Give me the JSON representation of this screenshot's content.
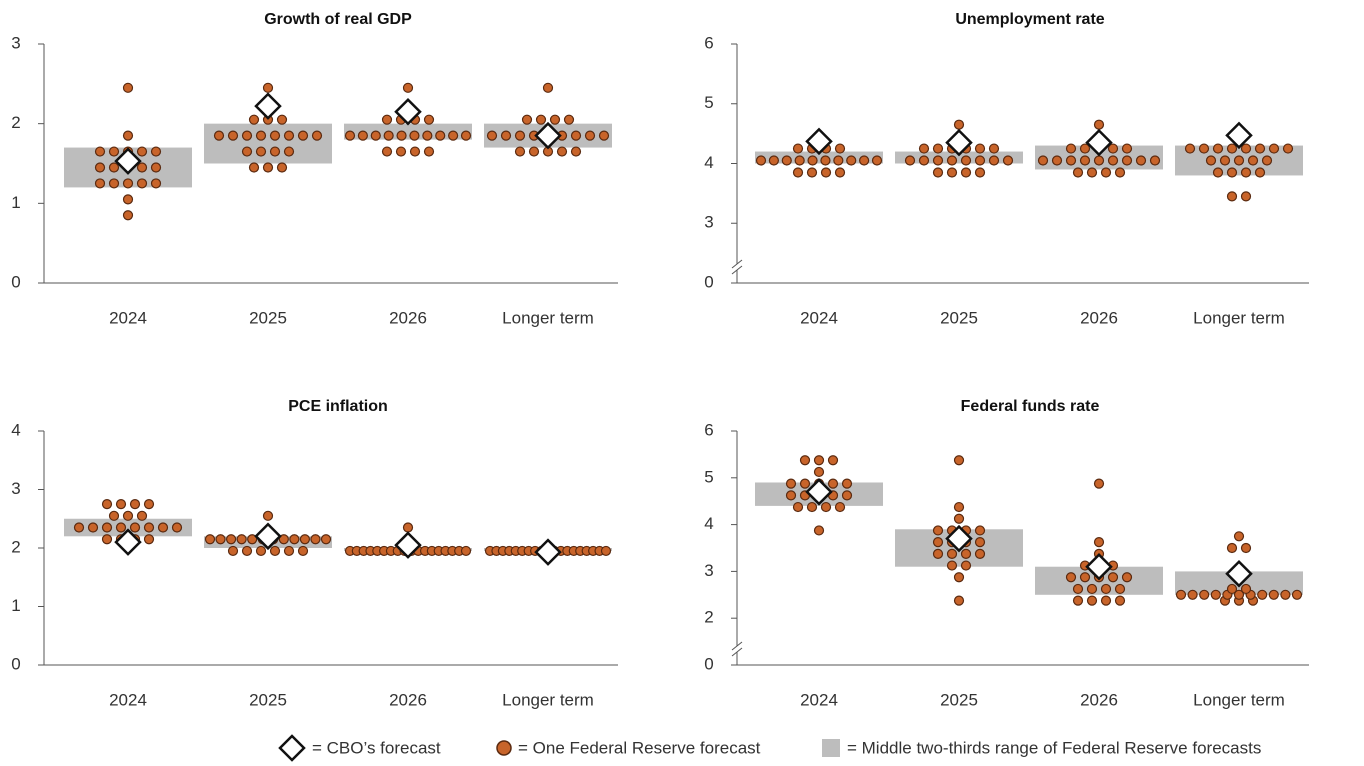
{
  "chart_data": [
    {
      "type": "dot",
      "title": "Growth of real GDP",
      "categories": [
        "2024",
        "2025",
        "2026",
        "Longer term"
      ],
      "ylim": [
        0,
        3
      ],
      "yticks": [
        0,
        1,
        2,
        3
      ],
      "fed_forecasts": [
        [
          0.85,
          1.05,
          1.25,
          1.25,
          1.25,
          1.25,
          1.25,
          1.45,
          1.45,
          1.45,
          1.45,
          1.45,
          1.65,
          1.65,
          1.65,
          1.65,
          1.65,
          1.85,
          2.45
        ],
        [
          1.45,
          1.45,
          1.45,
          1.65,
          1.65,
          1.65,
          1.65,
          1.85,
          1.85,
          1.85,
          1.85,
          1.85,
          1.85,
          1.85,
          1.85,
          2.05,
          2.05,
          2.05,
          2.45
        ],
        [
          1.65,
          1.65,
          1.65,
          1.65,
          1.85,
          1.85,
          1.85,
          1.85,
          1.85,
          1.85,
          1.85,
          1.85,
          1.85,
          1.85,
          2.05,
          2.05,
          2.05,
          2.05,
          2.45
        ],
        [
          1.65,
          1.65,
          1.65,
          1.65,
          1.65,
          1.85,
          1.85,
          1.85,
          1.85,
          1.85,
          1.85,
          1.85,
          1.85,
          1.85,
          2.05,
          2.05,
          2.05,
          2.05,
          2.45
        ]
      ],
      "range": [
        [
          1.2,
          1.7
        ],
        [
          1.5,
          2.0
        ],
        [
          1.8,
          2.0
        ],
        [
          1.7,
          2.0
        ]
      ],
      "cbo": [
        1.53,
        2.22,
        2.15,
        1.85
      ]
    },
    {
      "type": "dot",
      "title": "Unemployment rate",
      "categories": [
        "2024",
        "2025",
        "2026",
        "Longer term"
      ],
      "ylim": [
        2,
        6
      ],
      "yticks": [
        0,
        3,
        4,
        5,
        6
      ],
      "axis_break": true,
      "fed_forecasts": [
        [
          3.85,
          3.85,
          3.85,
          3.85,
          4.05,
          4.05,
          4.05,
          4.05,
          4.05,
          4.05,
          4.05,
          4.05,
          4.05,
          4.05,
          4.25,
          4.25,
          4.25,
          4.25,
          4.45
        ],
        [
          3.85,
          3.85,
          3.85,
          3.85,
          4.05,
          4.05,
          4.05,
          4.05,
          4.05,
          4.05,
          4.05,
          4.05,
          4.25,
          4.25,
          4.25,
          4.25,
          4.25,
          4.25,
          4.65
        ],
        [
          3.85,
          3.85,
          3.85,
          3.85,
          4.05,
          4.05,
          4.05,
          4.05,
          4.05,
          4.05,
          4.05,
          4.05,
          4.05,
          4.25,
          4.25,
          4.25,
          4.25,
          4.25,
          4.65
        ],
        [
          3.45,
          3.45,
          3.85,
          3.85,
          3.85,
          3.85,
          4.05,
          4.05,
          4.05,
          4.05,
          4.05,
          4.25,
          4.25,
          4.25,
          4.25,
          4.25,
          4.25,
          4.25,
          4.25
        ]
      ],
      "range": [
        [
          4.0,
          4.2
        ],
        [
          4.0,
          4.2
        ],
        [
          3.9,
          4.3
        ],
        [
          3.8,
          4.3
        ]
      ],
      "cbo": [
        4.37,
        4.35,
        4.35,
        4.47
      ]
    },
    {
      "type": "dot",
      "title": "PCE inflation",
      "categories": [
        "2024",
        "2025",
        "2026",
        "Longer term"
      ],
      "ylim": [
        0,
        4
      ],
      "yticks": [
        0,
        1,
        2,
        3,
        4
      ],
      "fed_forecasts": [
        [
          2.15,
          2.15,
          2.15,
          2.15,
          2.35,
          2.35,
          2.35,
          2.35,
          2.35,
          2.35,
          2.35,
          2.35,
          2.55,
          2.55,
          2.55,
          2.75,
          2.75,
          2.75,
          2.75
        ],
        [
          1.95,
          1.95,
          1.95,
          1.95,
          1.95,
          1.95,
          2.15,
          2.15,
          2.15,
          2.15,
          2.15,
          2.15,
          2.15,
          2.15,
          2.15,
          2.15,
          2.15,
          2.15,
          2.55
        ],
        [
          1.95,
          1.95,
          1.95,
          1.95,
          1.95,
          1.95,
          1.95,
          1.95,
          1.95,
          1.95,
          1.95,
          1.95,
          1.95,
          1.95,
          1.95,
          1.95,
          1.95,
          1.95,
          2.35
        ],
        [
          1.95,
          1.95,
          1.95,
          1.95,
          1.95,
          1.95,
          1.95,
          1.95,
          1.95,
          1.95,
          1.95,
          1.95,
          1.95,
          1.95,
          1.95,
          1.95,
          1.95,
          1.95,
          1.95
        ]
      ],
      "range": [
        [
          2.2,
          2.5
        ],
        [
          2.0,
          2.2
        ],
        [
          1.95,
          2.0
        ],
        [
          1.95,
          2.0
        ]
      ],
      "cbo": [
        2.1,
        2.2,
        2.05,
        1.93
      ]
    },
    {
      "type": "dot",
      "title": "Federal funds rate",
      "categories": [
        "2024",
        "2025",
        "2026",
        "Longer term"
      ],
      "ylim": [
        1,
        6
      ],
      "yticks": [
        0,
        2,
        3,
        4,
        5,
        6
      ],
      "axis_break": true,
      "fed_forecasts": [
        [
          3.875,
          4.375,
          4.375,
          4.375,
          4.375,
          4.625,
          4.625,
          4.625,
          4.625,
          4.625,
          4.875,
          4.875,
          4.875,
          4.875,
          4.875,
          5.125,
          5.375,
          5.375,
          5.375
        ],
        [
          2.375,
          2.875,
          3.125,
          3.125,
          3.375,
          3.375,
          3.375,
          3.375,
          3.625,
          3.625,
          3.625,
          3.625,
          3.875,
          3.875,
          3.875,
          3.875,
          4.125,
          4.375,
          5.375
        ],
        [
          2.375,
          2.375,
          2.375,
          2.375,
          2.625,
          2.625,
          2.625,
          2.625,
          2.875,
          2.875,
          2.875,
          2.875,
          2.875,
          3.125,
          3.125,
          3.125,
          3.375,
          3.625,
          4.875
        ],
        [
          2.375,
          2.375,
          2.375,
          2.5,
          2.5,
          2.5,
          2.5,
          2.5,
          2.5,
          2.5,
          2.5,
          2.5,
          2.5,
          2.5,
          2.625,
          2.625,
          3.5,
          3.5,
          3.75
        ]
      ],
      "range": [
        [
          4.4,
          4.9
        ],
        [
          3.1,
          3.9
        ],
        [
          2.5,
          3.1
        ],
        [
          2.5,
          3.0
        ]
      ],
      "cbo": [
        4.7,
        3.7,
        3.1,
        2.95
      ]
    }
  ],
  "dot_color": "#c8642a",
  "range_color": "#bdbdbd",
  "legend": [
    "= CBO’s forecast",
    "= One Federal Reserve forecast",
    "= Middle two-thirds range of Federal Reserve forecasts"
  ]
}
